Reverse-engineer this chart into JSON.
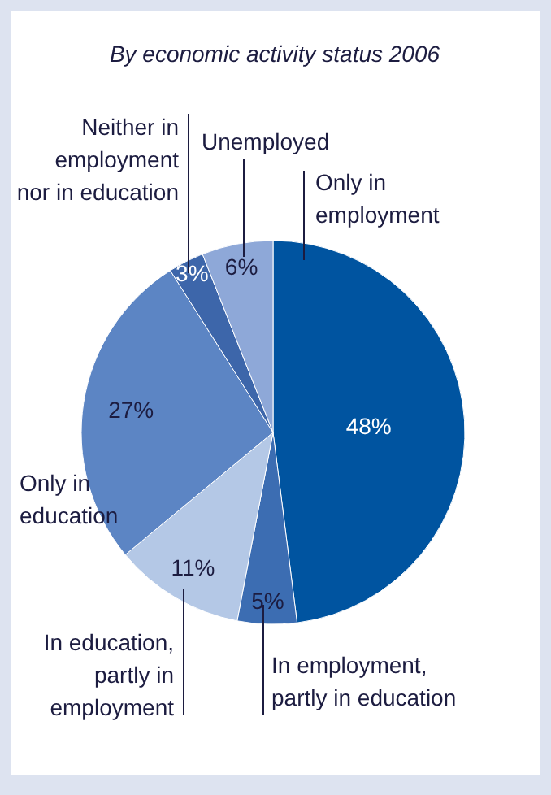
{
  "chart_data": {
    "type": "pie",
    "title": "By economic activity status 2006",
    "categories": [
      "Only in employment",
      "In employment, partly in education",
      "In education, partly in employment",
      "Only in education",
      "Neither in employment nor in education",
      "Unemployed"
    ],
    "values": [
      48,
      5,
      11,
      27,
      3,
      6
    ],
    "colors": [
      "#0054a0",
      "#3c6db2",
      "#b4c8e6",
      "#5c85c4",
      "#3d66aa",
      "#8ea8d8"
    ],
    "value_labels": [
      "48%",
      "5%",
      "11%",
      "27%",
      "3%",
      "6%"
    ]
  }
}
